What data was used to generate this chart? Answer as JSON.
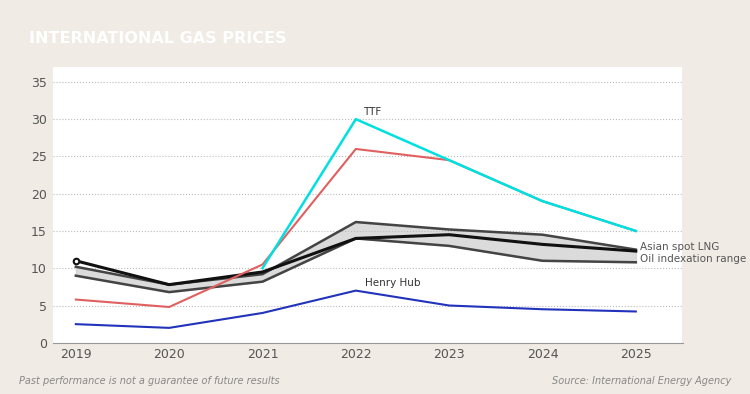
{
  "title": "INTERNATIONAL GAS PRICES",
  "title_bg_color": "#a07050",
  "title_text_color": "#ffffff",
  "outer_bg_color": "#f0ebe4",
  "plot_bg_color": "#ffffff",
  "years": [
    2019,
    2020,
    2021,
    2022,
    2023,
    2024,
    2025
  ],
  "ttf_years": [
    2021,
    2022,
    2023,
    2024,
    2025
  ],
  "ttf_vals": [
    10.0,
    30.0,
    24.5,
    19.0,
    15.0
  ],
  "salmon_years": [
    2019,
    2020,
    2021,
    2022,
    2023,
    2024,
    2025
  ],
  "salmon_vals": [
    5.8,
    4.8,
    10.5,
    26.0,
    24.5,
    19.0,
    15.0
  ],
  "henry_hub": [
    2.5,
    2.0,
    4.0,
    7.0,
    5.0,
    4.5,
    4.2
  ],
  "oil_index_upper": [
    10.2,
    7.8,
    9.2,
    16.2,
    15.2,
    14.5,
    12.5
  ],
  "oil_index_lower": [
    9.0,
    6.8,
    8.2,
    14.0,
    13.0,
    11.0,
    10.8
  ],
  "asian_spot_lng": [
    11.0,
    7.8,
    9.5,
    14.0,
    14.5,
    13.2,
    12.3
  ],
  "oil_index_upper_line": [
    10.2,
    7.8,
    9.2,
    16.2,
    15.2,
    14.5,
    12.5
  ],
  "oil_index_lower_line": [
    9.0,
    6.8,
    8.2,
    14.0,
    13.0,
    11.0,
    10.8
  ],
  "ttf_color": "#00e0e0",
  "salmon_color": "#e06060",
  "henry_hub_color": "#2233bb",
  "oil_band_color": "#cccccc",
  "oil_upper_line_color": "#444444",
  "oil_lower_line_color": "#444444",
  "asian_spot_color": "#111111",
  "grid_color": "#bbbbbb",
  "ylim": [
    0,
    37
  ],
  "yticks": [
    0,
    5,
    10,
    15,
    20,
    25,
    30,
    35
  ],
  "footer_left": "Past performance is not a guarantee of future results",
  "footer_right": "Source: International Energy Agency"
}
